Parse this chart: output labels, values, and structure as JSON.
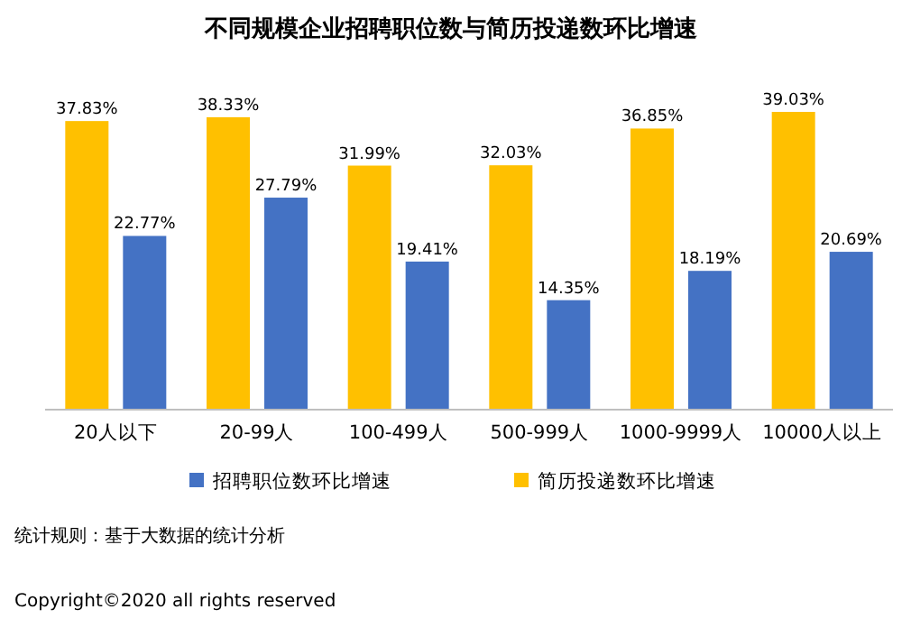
{
  "chart_data": {
    "type": "bar",
    "title": "不同规模企业招聘职位数与简历投递数环比增速",
    "categories": [
      "20人以下",
      "20-99人",
      "100-499人",
      "500-999人",
      "1000-9999人",
      "10000人以上"
    ],
    "series": [
      {
        "name": "简历投递数环比增速",
        "color": "#ffc000",
        "values": [
          37.83,
          38.33,
          31.99,
          32.03,
          36.85,
          39.03
        ],
        "value_labels": [
          "37.83%",
          "38.33%",
          "31.99%",
          "32.03%",
          "36.85%",
          "39.03%"
        ]
      },
      {
        "name": "招聘职位数环比增速",
        "color": "#4472c4",
        "values": [
          22.77,
          27.79,
          19.41,
          14.35,
          18.19,
          20.69
        ],
        "value_labels": [
          "22.77%",
          "27.79%",
          "19.41%",
          "14.35%",
          "18.19%",
          "20.69%"
        ]
      }
    ],
    "legend": "bottom",
    "annotations": [
      "统计规则：基于大数据的统计分析",
      "Copyright©2020 all rights reserved"
    ]
  }
}
